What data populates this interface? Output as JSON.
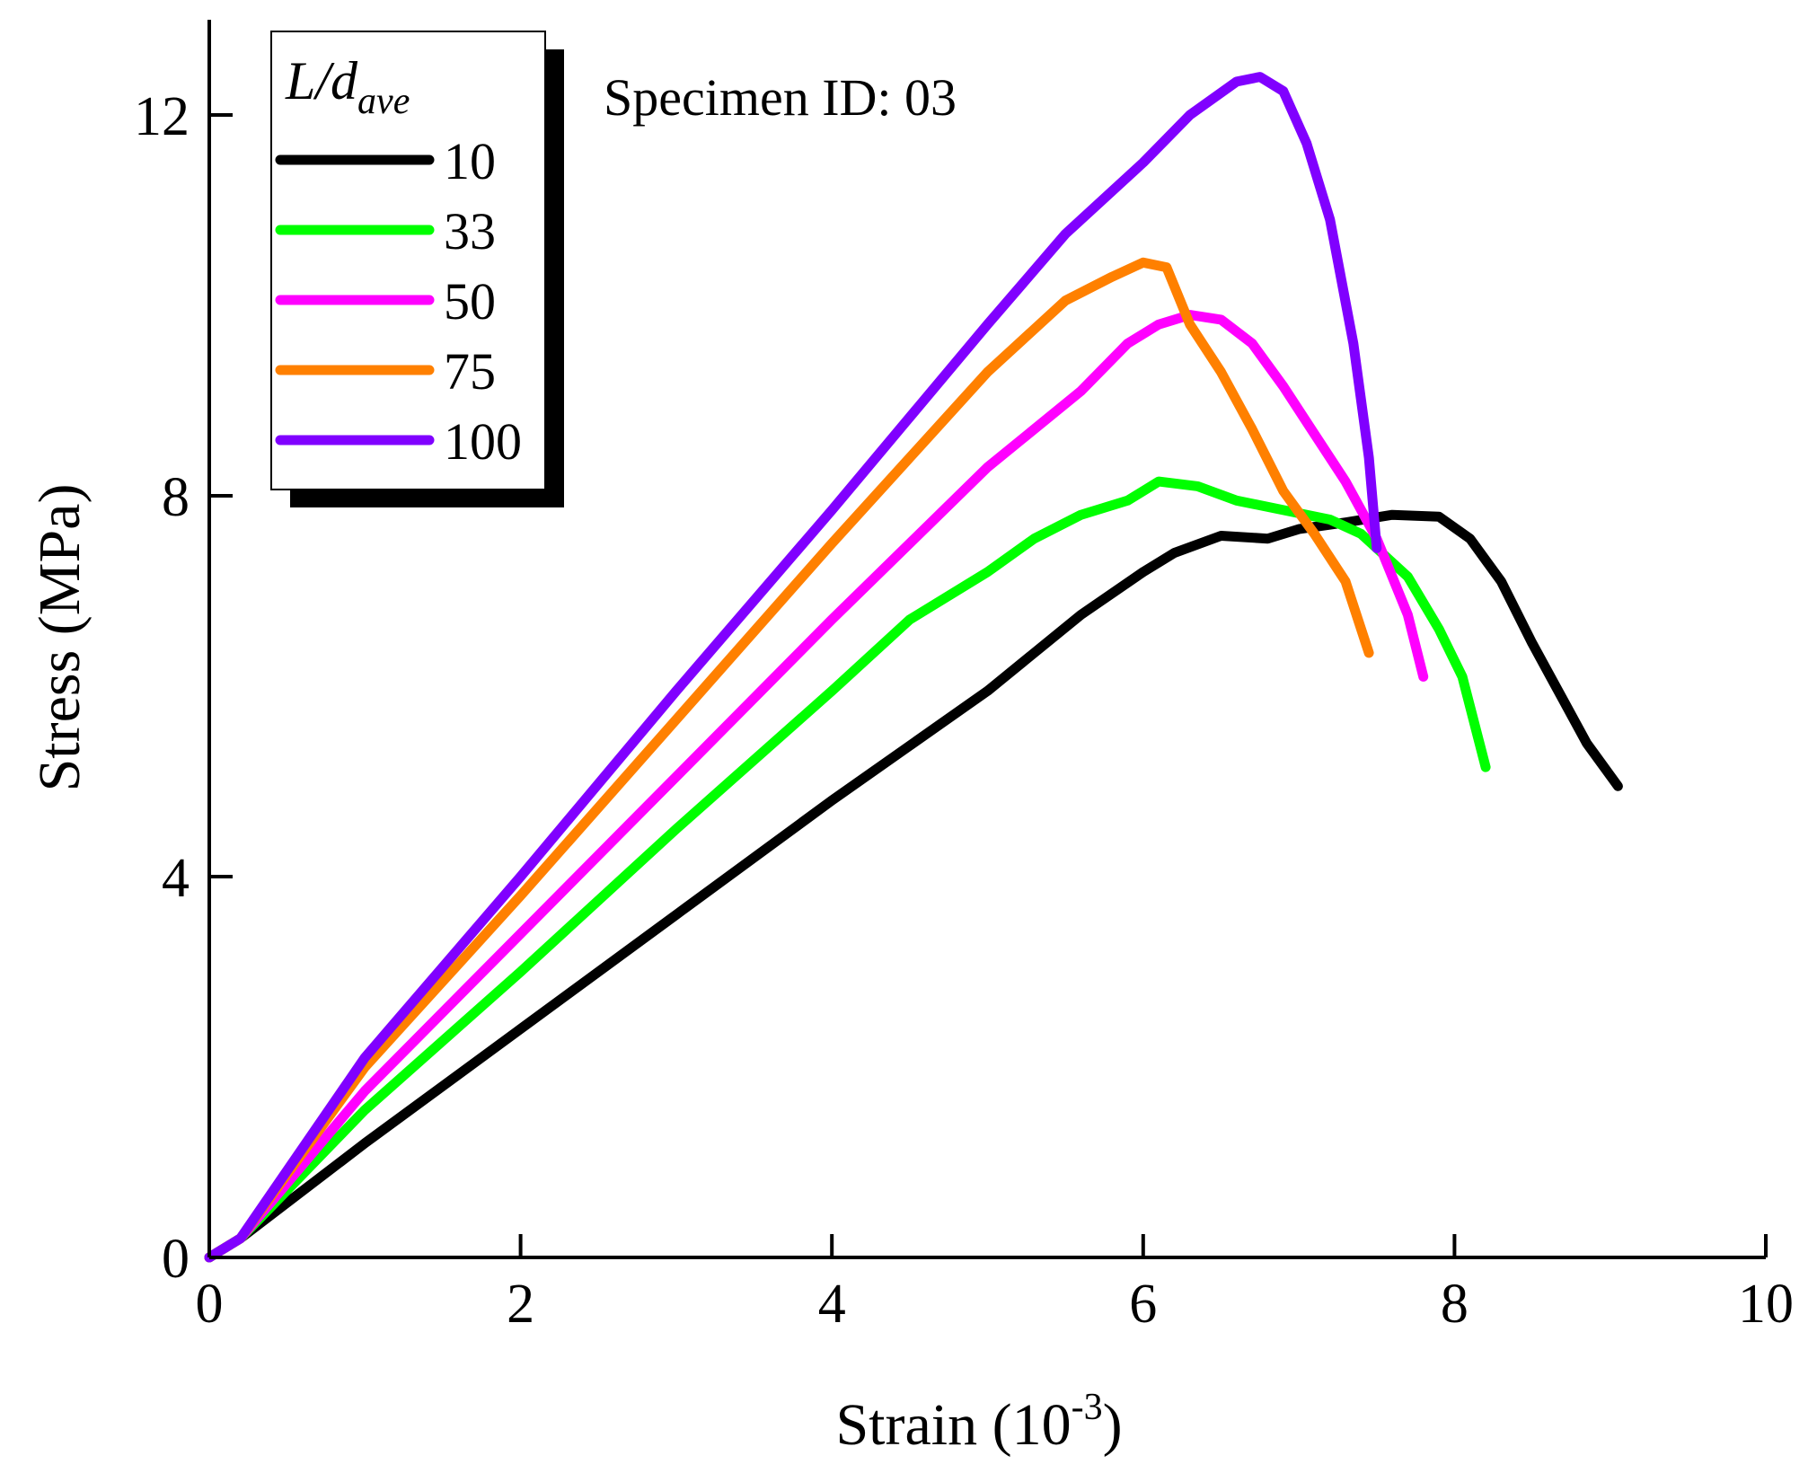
{
  "chart_data": {
    "type": "line",
    "title": "",
    "annotation": "Specimen ID: 03",
    "xlabel": "Strain (10",
    "xlabel_exponent": "-3",
    "xlabel_suffix": ")",
    "ylabel": "Stress (MPa)",
    "xlim": [
      0,
      10
    ],
    "ylim": [
      0,
      13
    ],
    "xticks": [
      0,
      2,
      4,
      6,
      8,
      10
    ],
    "yticks": [
      0,
      4,
      8,
      12
    ],
    "grid": false,
    "legend": {
      "placement": "top-left",
      "title_main": "L/d",
      "title_sub": "ave"
    },
    "series": [
      {
        "name": "10",
        "color": "#000000",
        "points": [
          [
            0,
            0
          ],
          [
            0.2,
            0.2
          ],
          [
            1,
            1.2
          ],
          [
            2,
            2.4
          ],
          [
            3,
            3.6
          ],
          [
            4,
            4.8
          ],
          [
            5,
            5.95
          ],
          [
            5.6,
            6.75
          ],
          [
            6,
            7.2
          ],
          [
            6.2,
            7.4
          ],
          [
            6.5,
            7.58
          ],
          [
            6.8,
            7.55
          ],
          [
            7,
            7.65
          ],
          [
            7.3,
            7.72
          ],
          [
            7.6,
            7.8
          ],
          [
            7.9,
            7.78
          ],
          [
            8.1,
            7.55
          ],
          [
            8.3,
            7.1
          ],
          [
            8.5,
            6.45
          ],
          [
            8.7,
            5.85
          ],
          [
            8.85,
            5.4
          ],
          [
            9.05,
            4.95
          ]
        ]
      },
      {
        "name": "33",
        "color": "#00ff00",
        "points": [
          [
            0,
            0
          ],
          [
            0.2,
            0.2
          ],
          [
            1,
            1.55
          ],
          [
            2,
            3.0
          ],
          [
            3,
            4.5
          ],
          [
            4,
            5.95
          ],
          [
            4.5,
            6.7
          ],
          [
            5,
            7.2
          ],
          [
            5.3,
            7.55
          ],
          [
            5.6,
            7.8
          ],
          [
            5.9,
            7.95
          ],
          [
            6.1,
            8.15
          ],
          [
            6.35,
            8.1
          ],
          [
            6.6,
            7.95
          ],
          [
            6.9,
            7.85
          ],
          [
            7.2,
            7.75
          ],
          [
            7.4,
            7.6
          ],
          [
            7.7,
            7.15
          ],
          [
            7.9,
            6.6
          ],
          [
            8.05,
            6.1
          ],
          [
            8.2,
            5.15
          ]
        ]
      },
      {
        "name": "50",
        "color": "#ff00ff",
        "points": [
          [
            0,
            0
          ],
          [
            0.2,
            0.2
          ],
          [
            1,
            1.75
          ],
          [
            2,
            3.4
          ],
          [
            3,
            5.05
          ],
          [
            4,
            6.7
          ],
          [
            5,
            8.3
          ],
          [
            5.6,
            9.1
          ],
          [
            5.9,
            9.6
          ],
          [
            6.1,
            9.8
          ],
          [
            6.3,
            9.9
          ],
          [
            6.5,
            9.85
          ],
          [
            6.7,
            9.6
          ],
          [
            6.9,
            9.15
          ],
          [
            7.1,
            8.65
          ],
          [
            7.3,
            8.15
          ],
          [
            7.5,
            7.55
          ],
          [
            7.7,
            6.75
          ],
          [
            7.8,
            6.1
          ]
        ]
      },
      {
        "name": "75",
        "color": "#ff8000",
        "points": [
          [
            0,
            0
          ],
          [
            0.2,
            0.2
          ],
          [
            1,
            2.0
          ],
          [
            2,
            3.8
          ],
          [
            3,
            5.65
          ],
          [
            4,
            7.5
          ],
          [
            5,
            9.3
          ],
          [
            5.5,
            10.05
          ],
          [
            5.8,
            10.3
          ],
          [
            6.0,
            10.45
          ],
          [
            6.15,
            10.4
          ],
          [
            6.3,
            9.8
          ],
          [
            6.5,
            9.3
          ],
          [
            6.7,
            8.7
          ],
          [
            6.9,
            8.05
          ],
          [
            7.1,
            7.6
          ],
          [
            7.3,
            7.1
          ],
          [
            7.45,
            6.35
          ]
        ]
      },
      {
        "name": "100",
        "color": "#8000ff",
        "points": [
          [
            0,
            0
          ],
          [
            0.2,
            0.2
          ],
          [
            1,
            2.1
          ],
          [
            2,
            4.0
          ],
          [
            3,
            5.95
          ],
          [
            4,
            7.85
          ],
          [
            5,
            9.8
          ],
          [
            5.5,
            10.75
          ],
          [
            6.0,
            11.5
          ],
          [
            6.3,
            12.0
          ],
          [
            6.6,
            12.35
          ],
          [
            6.75,
            12.4
          ],
          [
            6.9,
            12.25
          ],
          [
            7.05,
            11.7
          ],
          [
            7.2,
            10.9
          ],
          [
            7.35,
            9.6
          ],
          [
            7.45,
            8.4
          ],
          [
            7.5,
            7.45
          ]
        ]
      }
    ]
  }
}
